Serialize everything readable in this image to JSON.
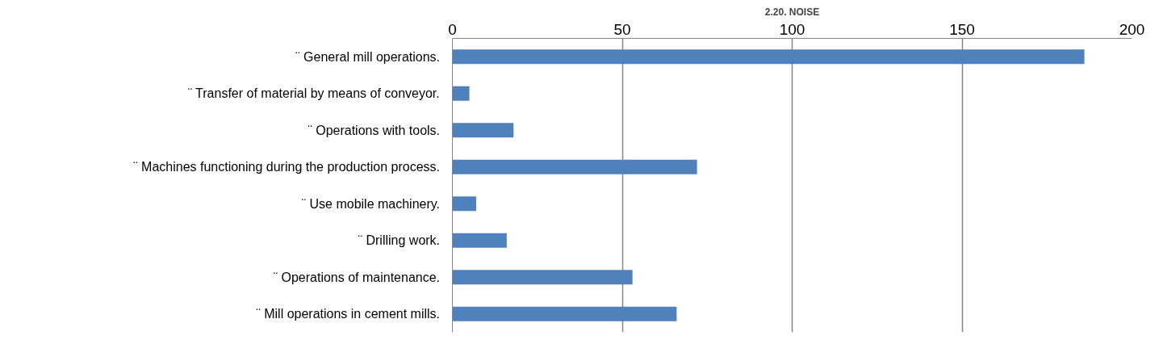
{
  "chart_data": {
    "type": "bar",
    "orientation": "horizontal",
    "title": "2.20. NOISE",
    "categories": [
      "¨  General mill operations.",
      "¨  Transfer of material by means of conveyor.",
      "¨  Operations with tools.",
      "¨  Machines functioning during the production process.",
      "¨  Use mobile machinery.",
      "¨  Drilling work.",
      "¨  Operations of maintenance.",
      "¨  Mill operations in cement mills."
    ],
    "values": [
      186,
      5,
      18,
      72,
      7,
      16,
      53,
      66
    ],
    "color": "#4f81bd",
    "xlim": [
      0,
      200
    ],
    "xticks": [
      0,
      50,
      100,
      150,
      200
    ],
    "grid": "x"
  }
}
